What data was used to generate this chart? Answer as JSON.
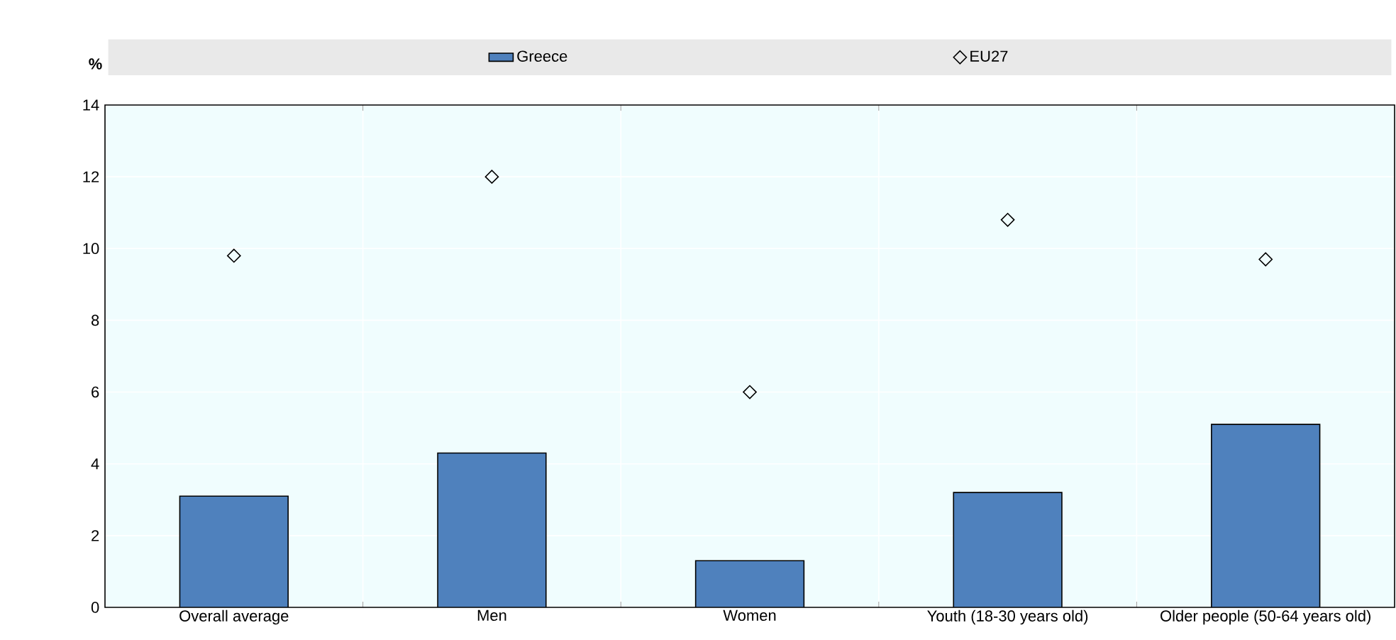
{
  "chart_data": {
    "type": "bar",
    "ylabel": "%",
    "categories": [
      "Overall average",
      "Men",
      "Women",
      "Youth (18-30 years old)",
      "Older people (50-64 years old)"
    ],
    "series": [
      {
        "name": "Greece",
        "color": "#4f81bd",
        "values": [
          3.1,
          4.3,
          1.3,
          3.2,
          5.1
        ]
      },
      {
        "name": "EU27",
        "type": "scatter",
        "marker": "diamond",
        "color": "#000000",
        "values": [
          9.8,
          12.0,
          6.0,
          10.8,
          9.7
        ]
      }
    ],
    "ylim": [
      0,
      14
    ],
    "yticks": [
      0,
      2,
      4,
      6,
      8,
      10,
      12,
      14
    ],
    "grid": true,
    "legend": "top"
  }
}
